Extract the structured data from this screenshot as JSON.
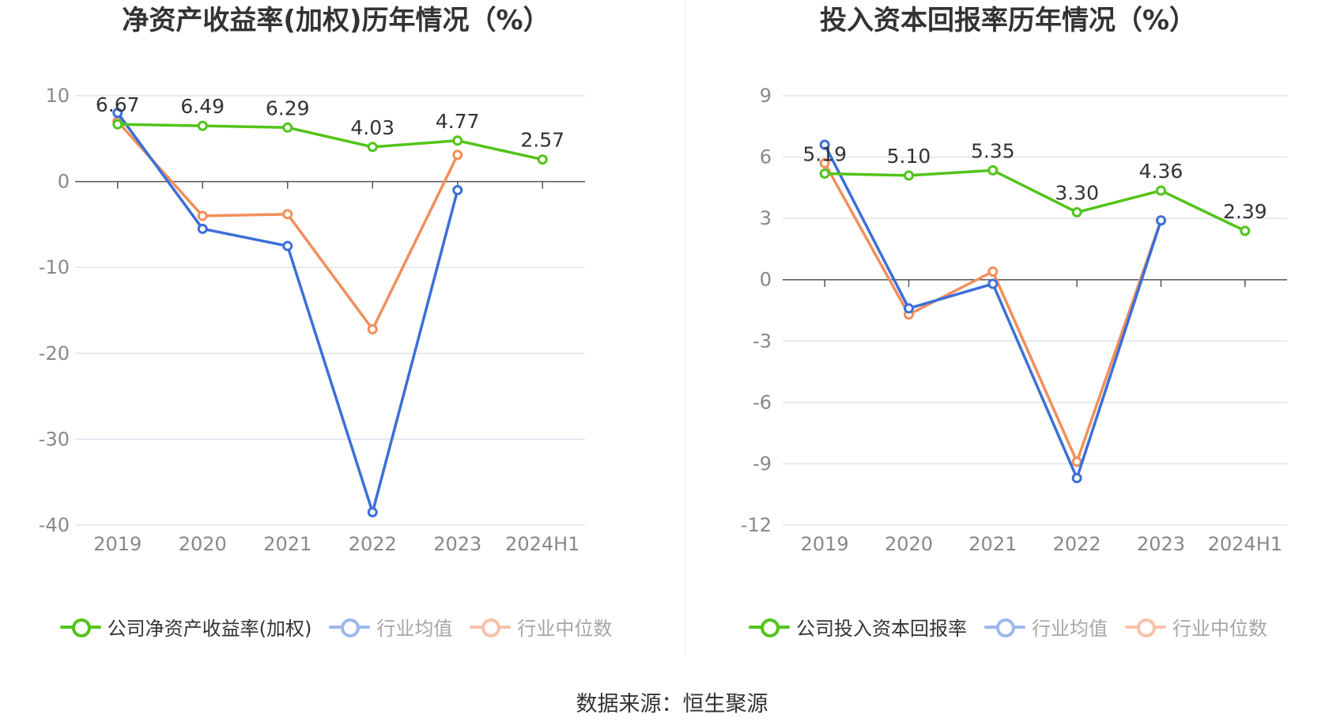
{
  "footer": {
    "source": "数据来源：恒生聚源"
  },
  "colors": {
    "company": "#52c41a",
    "average": "#3b6fd8",
    "median": "#f28e5c",
    "grid": "#dde3ee",
    "axis": "#555555",
    "tick": "#888888"
  },
  "chart_data": [
    {
      "type": "line",
      "title": "净资产收益率(加权)历年情况（%）",
      "categories": [
        "2019",
        "2020",
        "2021",
        "2022",
        "2023",
        "2024H1"
      ],
      "ylim": [
        -40,
        10
      ],
      "yticks": [
        10,
        0,
        -10,
        -20,
        -30,
        -40
      ],
      "grid": true,
      "legend_position": "bottom",
      "series": [
        {
          "name": "公司净资产收益率(加权)",
          "key": "company",
          "values": [
            6.67,
            6.49,
            6.29,
            4.03,
            4.77,
            2.57
          ],
          "labels": [
            "6.67",
            "6.49",
            "6.29",
            "4.03",
            "4.77",
            "2.57"
          ]
        },
        {
          "name": "行业均值",
          "key": "average",
          "values": [
            8.0,
            -5.5,
            -7.5,
            -38.5,
            -1.0,
            null
          ]
        },
        {
          "name": "行业中位数",
          "key": "median",
          "values": [
            7.0,
            -4.0,
            -3.8,
            -17.2,
            3.1,
            null
          ]
        }
      ]
    },
    {
      "type": "line",
      "title": "投入资本回报率历年情况（%）",
      "categories": [
        "2019",
        "2020",
        "2021",
        "2022",
        "2023",
        "2024H1"
      ],
      "ylim": [
        -12,
        9
      ],
      "yticks": [
        9,
        6,
        3,
        0,
        -3,
        -6,
        -9,
        -12
      ],
      "grid": true,
      "legend_position": "bottom",
      "series": [
        {
          "name": "公司投入资本回报率",
          "key": "company",
          "values": [
            5.19,
            5.1,
            5.35,
            3.3,
            4.36,
            2.39
          ],
          "labels": [
            "5.19",
            "5.10",
            "5.35",
            "3.30",
            "4.36",
            "2.39"
          ]
        },
        {
          "name": "行业均值",
          "key": "average",
          "values": [
            6.6,
            -1.4,
            -0.2,
            -9.7,
            2.9,
            null
          ]
        },
        {
          "name": "行业中位数",
          "key": "median",
          "values": [
            5.7,
            -1.7,
            0.4,
            -8.9,
            2.9,
            null
          ]
        }
      ]
    }
  ]
}
